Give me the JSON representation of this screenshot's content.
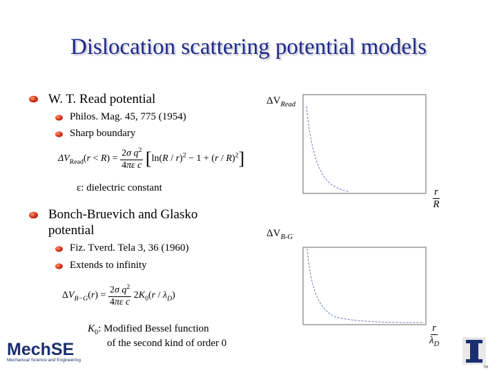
{
  "slide": {
    "title": "Dislocation scattering potential models",
    "read": {
      "heading": "W. T. Read potential",
      "items": [
        "Philos. Mag. 45, 775 (1954)",
        "Sharp boundary"
      ],
      "note": "ε: dielectric constant"
    },
    "bg": {
      "heading_line1": "Bonch-Bruevich and Glasko",
      "heading_line2": "potential",
      "items": [
        "Fiz. Tverd. Tela 3, 36 (1960)",
        "Extends to infinity"
      ],
      "note_k0": "K",
      "note_k0_sub": "0",
      "note_line1": ": Modified Bessel function",
      "note_line2": "of the second kind of order 0"
    },
    "plots": {
      "read_ylabel": "ΔV",
      "read_ylabel_sub": "Read",
      "read_xlabel_num": "r",
      "read_xlabel_den": "R",
      "bg_ylabel": "ΔV",
      "bg_ylabel_sub": "B-G",
      "bg_xlabel_num": "r",
      "bg_xlabel_den": "λ",
      "bg_xlabel_den_sub": "D"
    },
    "logo": {
      "text": "MechSE",
      "tagline": "Mechanical Science and Engineering"
    },
    "tm": "TM"
  }
}
